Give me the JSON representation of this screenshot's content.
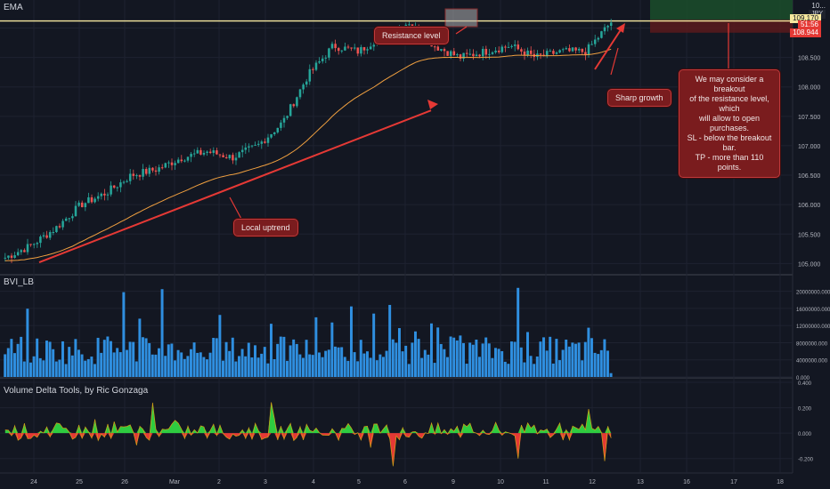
{
  "panes": {
    "main_title": "EMA",
    "volume_title": "BVI_LB",
    "delta_title": "Volume Delta Tools, by Ric Gonzaga"
  },
  "currency_badge": "JPY",
  "price_tags": {
    "top": "10...",
    "current": "109.170",
    "countdown": "51:56",
    "entry": "108.944"
  },
  "annotations": {
    "resistance": "Resistance level",
    "uptrend": "Local uptrend",
    "sharp_growth": "Sharp growth",
    "note_lines": [
      "We may consider a breakout",
      "of the resistance level, which",
      "will allow to open purchases.",
      "SL - below the breakout bar.",
      "TP - more than 110 points."
    ]
  },
  "colors": {
    "background": "#131722",
    "up_candle": "#26a69a",
    "down_candle": "#ef5350",
    "ema": "#f0a040",
    "volume_bar": "#2f8fe0",
    "delta_pos": "#2ecc40",
    "delta_neg": "#e53935",
    "trend_line": "#e53935",
    "resistance_line": "#f5e79e"
  },
  "chart_data": [
    {
      "type": "candlestick",
      "title": "EMA",
      "x_tick_labels": [
        "24",
        "25",
        "26",
        "Mar",
        "2",
        "3",
        "4",
        "5",
        "6",
        "9",
        "10",
        "11",
        "12",
        "13",
        "16",
        "17",
        "18"
      ],
      "y_ticks": [
        105.0,
        105.5,
        106.0,
        106.5,
        107.0,
        107.5,
        108.0,
        108.5,
        109.0
      ],
      "ylim": [
        104.9,
        109.4
      ],
      "resistance_level": 109.12,
      "close_approx": [
        105.1,
        105.3,
        105.6,
        106.0,
        106.2,
        106.5,
        106.6,
        106.8,
        106.9,
        106.8,
        107.0,
        107.4,
        108.2,
        108.7,
        108.6,
        108.9,
        109.1,
        108.7,
        108.5,
        108.6,
        108.7,
        108.5,
        108.6,
        108.6,
        109.1
      ],
      "series": [
        {
          "name": "EMA"
        }
      ]
    },
    {
      "type": "bar",
      "title": "BVI_LB",
      "y_ticks": [
        0,
        4000000,
        8000000,
        12000000,
        16000000,
        20000000
      ],
      "y_tick_labels": [
        "0.000",
        "4000000.000",
        "8000000.000",
        "12000000.000",
        "16000000.000",
        "20000000.000"
      ],
      "ylim": [
        0,
        22000000
      ]
    },
    {
      "type": "area",
      "title": "Volume Delta Tools, by Ric Gonzaga",
      "y_ticks": [
        -0.2,
        0.0,
        0.2,
        0.4
      ],
      "y_tick_labels": [
        "-0.200",
        "0.000",
        "0.200",
        "0.400"
      ],
      "ylim": [
        -0.3,
        0.4
      ]
    }
  ]
}
